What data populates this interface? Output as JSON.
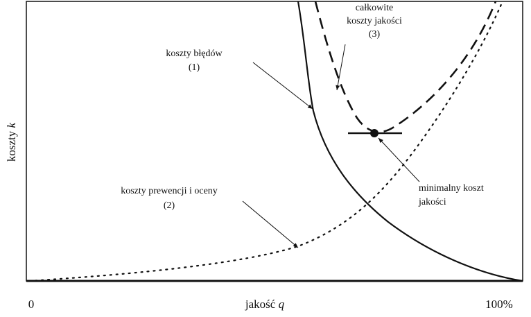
{
  "axes": {
    "y_label": {
      "text": "koszty",
      "variable": "k"
    },
    "x_label": {
      "text": "jakość",
      "variable": "q"
    },
    "x_start": "0",
    "x_end": "100%"
  },
  "curves": [
    {
      "label": "koszty błędów",
      "number": "(1)"
    },
    {
      "label": "koszty prewencji i oceny",
      "number": "(2)"
    },
    {
      "label": [
        "całkowite",
        "koszty jakości"
      ],
      "number": "(3)"
    }
  ],
  "minimum": {
    "label": [
      "minimalny koszt",
      "jakości"
    ]
  }
}
